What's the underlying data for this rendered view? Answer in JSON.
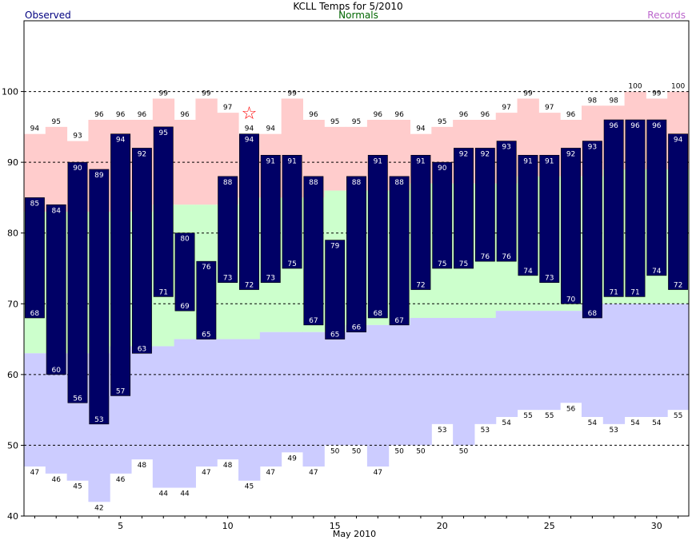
{
  "chart_data": {
    "type": "bar",
    "title": "KCLL Temps for 5/2010",
    "xlabel": "May 2010",
    "ylabel": "",
    "legend": {
      "observed": "Observed",
      "normals": "Normals",
      "records": "Records"
    },
    "ylim": [
      40,
      110
    ],
    "yticks": [
      40,
      50,
      60,
      70,
      80,
      90,
      100
    ],
    "xlim": [
      0.5,
      31.5
    ],
    "xticks": [
      5,
      10,
      15,
      20,
      25,
      30
    ],
    "days": [
      1,
      2,
      3,
      4,
      5,
      6,
      7,
      8,
      9,
      10,
      11,
      12,
      13,
      14,
      15,
      16,
      17,
      18,
      19,
      20,
      21,
      22,
      23,
      24,
      25,
      26,
      27,
      28,
      29,
      30,
      31
    ],
    "observed_high": [
      85,
      84,
      90,
      89,
      94,
      92,
      95,
      80,
      76,
      88,
      94,
      91,
      91,
      88,
      79,
      88,
      91,
      88,
      91,
      90,
      92,
      92,
      93,
      91,
      91,
      92,
      93,
      96,
      96,
      96,
      94
    ],
    "observed_low": [
      68,
      60,
      56,
      53,
      57,
      63,
      71,
      69,
      65,
      73,
      72,
      73,
      75,
      67,
      65,
      66,
      68,
      67,
      72,
      75,
      75,
      76,
      76,
      74,
      73,
      70,
      68,
      71,
      71,
      74,
      72
    ],
    "normal_high": [
      83,
      83,
      83,
      83,
      83,
      83,
      84,
      84,
      84,
      84,
      85,
      85,
      85,
      85,
      86,
      86,
      86,
      86,
      87,
      87,
      87,
      87,
      87,
      88,
      88,
      88,
      88,
      89,
      89,
      89,
      89
    ],
    "normal_low": [
      63,
      63,
      63,
      63,
      64,
      64,
      64,
      65,
      65,
      65,
      65,
      66,
      66,
      66,
      66,
      67,
      67,
      67,
      68,
      68,
      68,
      68,
      69,
      69,
      69,
      69,
      70,
      70,
      70,
      70,
      70
    ],
    "record_high": [
      94,
      95,
      93,
      96,
      96,
      96,
      99,
      96,
      99,
      97,
      94,
      94,
      99,
      96,
      95,
      95,
      96,
      96,
      94,
      95,
      96,
      96,
      97,
      99,
      97,
      96,
      98,
      98,
      100,
      99,
      100
    ],
    "record_low": [
      47,
      46,
      45,
      42,
      46,
      48,
      44,
      44,
      47,
      48,
      45,
      47,
      49,
      47,
      50,
      50,
      47,
      50,
      50,
      53,
      50,
      53,
      54,
      55,
      55,
      56,
      54,
      53,
      54,
      54,
      55
    ],
    "record_high_marker": {
      "day": 11,
      "symbol": "☆"
    },
    "colors": {
      "observed": "#000066",
      "normals": "#ccffcc",
      "record_high": "#ffcccc",
      "record_low": "#ccccff",
      "star": "#ff0000",
      "observed_label": "#000080",
      "normals_label": "#006600",
      "records_label": "#bb66cc"
    },
    "grid": "dashed horizontal"
  }
}
